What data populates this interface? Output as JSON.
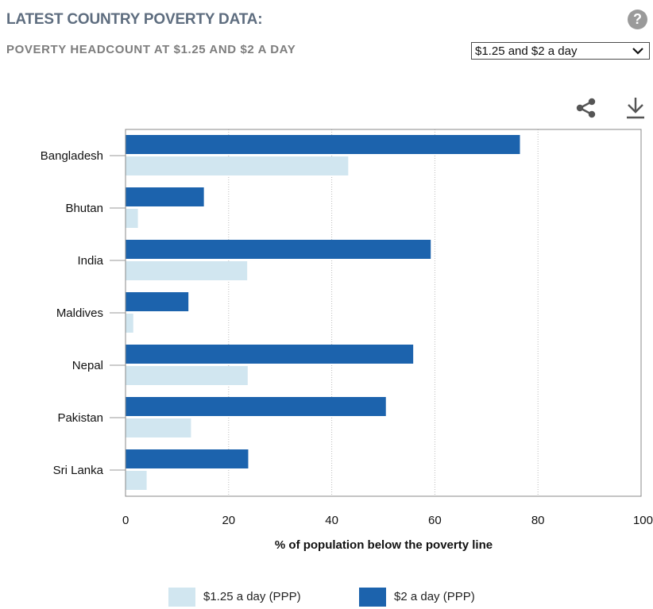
{
  "header": {
    "title": "LATEST COUNTRY POVERTY DATA:",
    "subtitle": "POVERTY HEADCOUNT AT $1.25 AND $2 A DAY",
    "help_icon": "question-icon"
  },
  "selector": {
    "selected": "$1.25 and $2 a day",
    "icon": "chevron-down-icon"
  },
  "toolbar": {
    "share_icon": "share-icon",
    "download_icon": "download-icon"
  },
  "colors": {
    "series_125": "#d1e6f0",
    "series_2": "#1c63ad",
    "grid": "#bcbcbc",
    "border": "#888888"
  },
  "chart_data": {
    "type": "bar",
    "orientation": "horizontal",
    "categories": [
      "Bangladesh",
      "Bhutan",
      "India",
      "Maldives",
      "Nepal",
      "Pakistan",
      "Sri Lanka"
    ],
    "series": [
      {
        "name": "$2 a day (PPP)",
        "values": [
          76.5,
          15.2,
          59.2,
          12.2,
          55.8,
          50.5,
          23.8
        ]
      },
      {
        "name": "$1.25 a day (PPP)",
        "values": [
          43.2,
          2.4,
          23.6,
          1.5,
          23.7,
          12.7,
          4.1
        ]
      }
    ],
    "xlabel": "% of population below the poverty line",
    "xlim": [
      0,
      100
    ],
    "xticks": [
      0,
      20,
      40,
      60,
      80,
      100
    ],
    "grid": true,
    "legend": {
      "position": "bottom",
      "entries": [
        "$1.25 a day (PPP)",
        "$2 a day (PPP)"
      ]
    }
  }
}
